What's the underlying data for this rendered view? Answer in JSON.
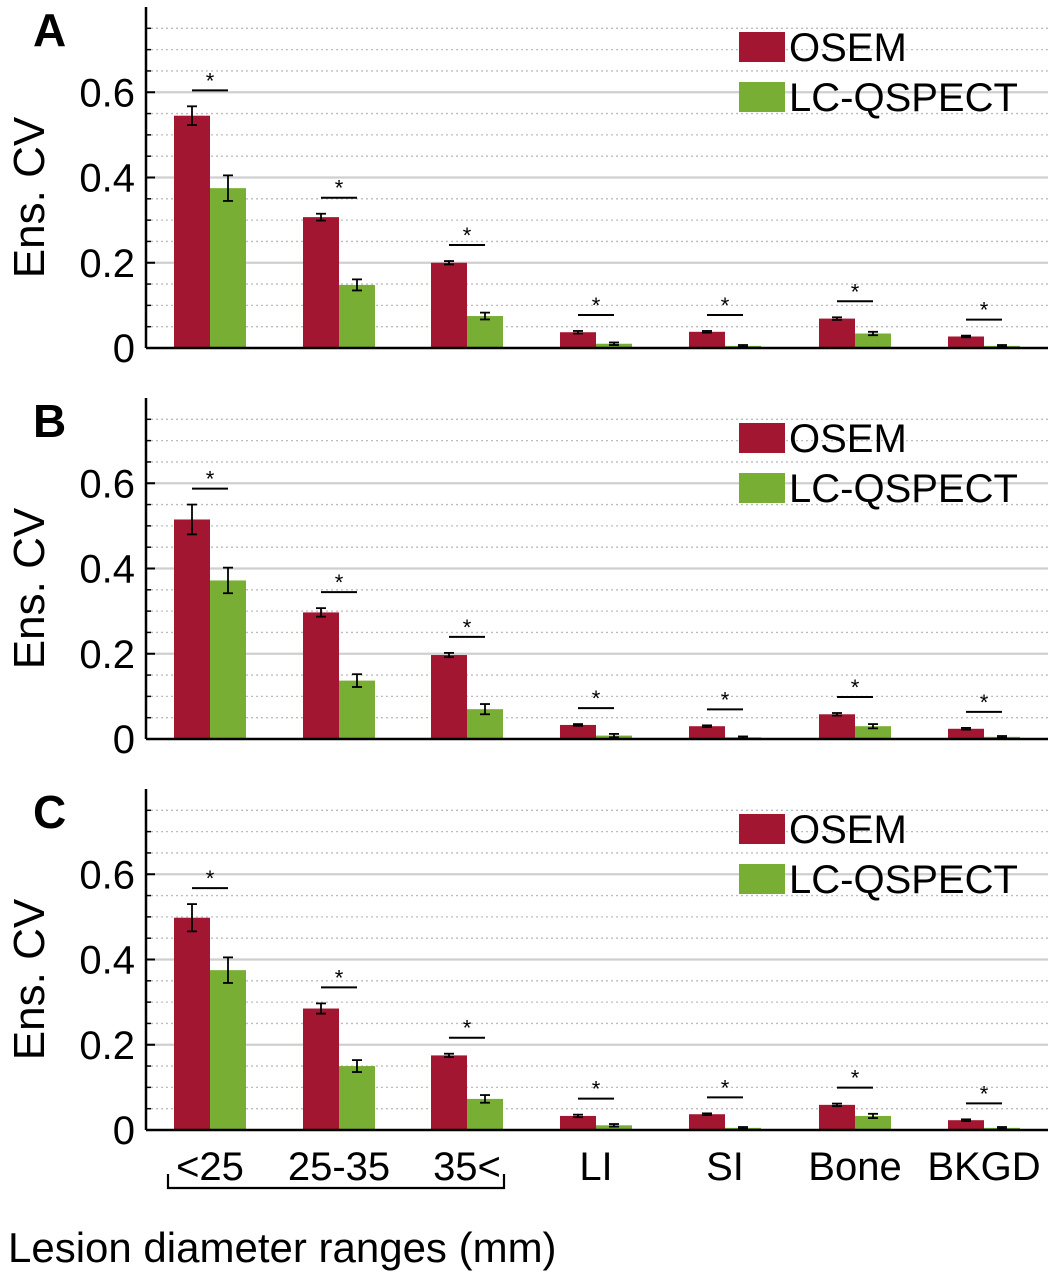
{
  "chart_data": [
    {
      "panel_label": "A",
      "type": "bar",
      "ylabel": "Ens. CV",
      "ylim": [
        0,
        0.8
      ],
      "yticks": [
        0,
        0.2,
        0.4,
        0.6
      ],
      "ytick_labels": [
        "0",
        "0.2",
        "0.4",
        "0.6"
      ],
      "grid": "dotted horizontal minor grid every 0.05, solid at 0.2 steps",
      "legend_position": "top-right",
      "categories": [
        "<25",
        "25-35",
        "35<",
        "LI",
        "SI",
        "Bone",
        "BKGD"
      ],
      "series": [
        {
          "name": "OSEM",
          "color": "#a31632",
          "values": [
            0.545,
            0.307,
            0.2,
            0.037,
            0.038,
            0.069,
            0.027
          ],
          "errors": [
            0.022,
            0.008,
            0.004,
            0.003,
            0.002,
            0.003,
            0.002
          ]
        },
        {
          "name": "LC-QSPECT",
          "color": "#79ae34",
          "values": [
            0.375,
            0.148,
            0.075,
            0.01,
            0.005,
            0.034,
            0.005
          ],
          "errors": [
            0.03,
            0.013,
            0.008,
            0.003,
            0.002,
            0.004,
            0.002
          ]
        }
      ],
      "annotations": [
        "*",
        "*",
        "*",
        "*",
        "*",
        "*",
        "*"
      ]
    },
    {
      "panel_label": "B",
      "type": "bar",
      "ylabel": "Ens. CV",
      "ylim": [
        0,
        0.8
      ],
      "yticks": [
        0,
        0.2,
        0.4,
        0.6
      ],
      "ytick_labels": [
        "0",
        "0.2",
        "0.4",
        "0.6"
      ],
      "grid": "dotted horizontal minor grid every 0.05, solid at 0.2 steps",
      "legend_position": "top-right",
      "categories": [
        "<25",
        "25-35",
        "35<",
        "LI",
        "SI",
        "Bone",
        "BKGD"
      ],
      "series": [
        {
          "name": "OSEM",
          "color": "#a31632",
          "values": [
            0.515,
            0.297,
            0.197,
            0.033,
            0.03,
            0.058,
            0.024
          ],
          "errors": [
            0.035,
            0.01,
            0.005,
            0.002,
            0.002,
            0.003,
            0.002
          ]
        },
        {
          "name": "LC-QSPECT",
          "color": "#79ae34",
          "values": [
            0.372,
            0.137,
            0.07,
            0.008,
            0.004,
            0.03,
            0.005
          ],
          "errors": [
            0.03,
            0.015,
            0.012,
            0.004,
            0.002,
            0.005,
            0.002
          ]
        }
      ],
      "annotations": [
        "*",
        "*",
        "*",
        "*",
        "*",
        "*",
        "*"
      ]
    },
    {
      "panel_label": "C",
      "type": "bar",
      "ylabel": "Ens. CV",
      "xlabel": "Lesion diameter ranges (mm)",
      "ylim": [
        0,
        0.8
      ],
      "yticks": [
        0,
        0.2,
        0.4,
        0.6
      ],
      "ytick_labels": [
        "0",
        "0.2",
        "0.4",
        "0.6"
      ],
      "grid": "dotted horizontal minor grid every 0.05, solid at 0.2 steps",
      "legend_position": "top-right",
      "categories": [
        "<25",
        "25-35",
        "35<",
        "LI",
        "SI",
        "Bone",
        "BKGD"
      ],
      "bracket_categories": [
        "<25",
        "25-35",
        "35<"
      ],
      "series": [
        {
          "name": "OSEM",
          "color": "#a31632",
          "values": [
            0.498,
            0.285,
            0.175,
            0.033,
            0.037,
            0.059,
            0.023
          ],
          "errors": [
            0.032,
            0.012,
            0.004,
            0.003,
            0.002,
            0.003,
            0.002
          ]
        },
        {
          "name": "LC-QSPECT",
          "color": "#79ae34",
          "values": [
            0.375,
            0.15,
            0.073,
            0.011,
            0.005,
            0.033,
            0.005
          ],
          "errors": [
            0.03,
            0.014,
            0.009,
            0.003,
            0.002,
            0.005,
            0.002
          ]
        }
      ],
      "annotations": [
        "*",
        "*",
        "*",
        "*",
        "*",
        "*",
        "*"
      ]
    }
  ]
}
